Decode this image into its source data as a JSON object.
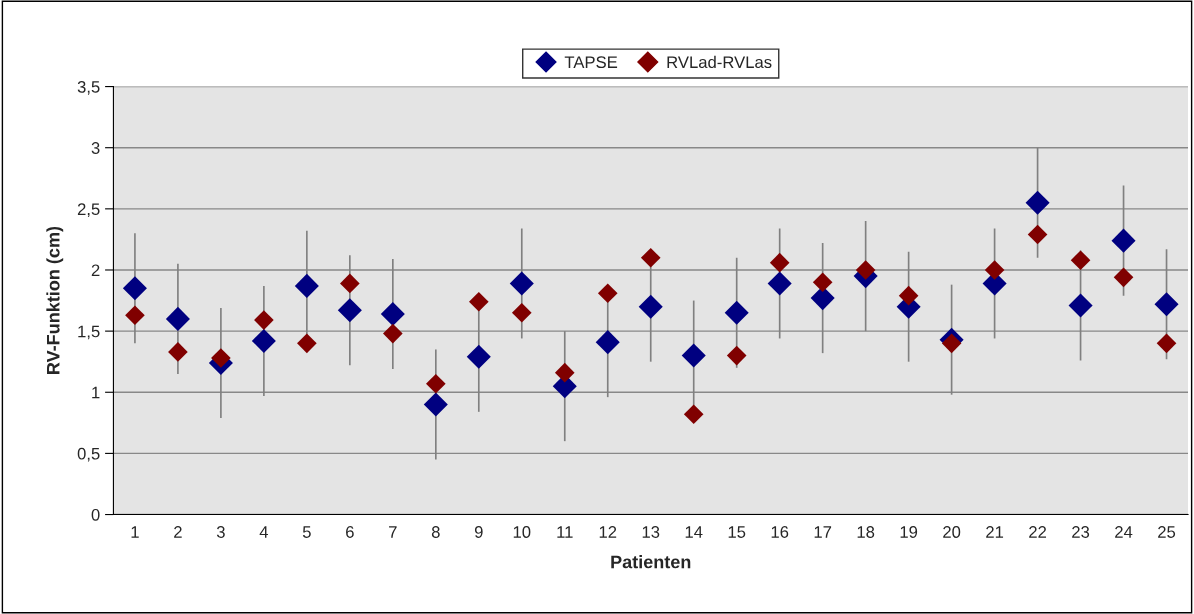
{
  "chart_data": {
    "type": "scatter",
    "xlabel": "Patienten",
    "ylabel": "RV-Funktion (cm)",
    "categories": [
      "1",
      "2",
      "3",
      "4",
      "5",
      "6",
      "7",
      "8",
      "9",
      "10",
      "11",
      "12",
      "13",
      "14",
      "15",
      "16",
      "17",
      "18",
      "19",
      "20",
      "21",
      "22",
      "23",
      "24",
      "25"
    ],
    "series": [
      {
        "name": "TAPSE",
        "color": "#000080",
        "values": [
          1.85,
          1.6,
          1.24,
          1.42,
          1.87,
          1.67,
          1.64,
          0.9,
          1.29,
          1.89,
          1.05,
          1.41,
          1.7,
          1.3,
          1.65,
          1.89,
          1.77,
          1.95,
          1.7,
          1.43,
          1.89,
          2.55,
          1.71,
          2.24,
          1.72
        ],
        "errors": [
          0.45,
          0.45,
          0.45,
          0.45,
          0.45,
          0.45,
          0.45,
          0.45,
          0.45,
          0.45,
          0.45,
          0.45,
          0.45,
          0.45,
          0.45,
          0.45,
          0.45,
          0.45,
          0.45,
          0.45,
          0.45,
          0.45,
          0.45,
          0.45,
          0.45
        ]
      },
      {
        "name": "RVLad-RVLas",
        "color": "#800000",
        "values": [
          1.63,
          1.33,
          1.28,
          1.59,
          1.4,
          1.89,
          1.48,
          1.07,
          1.74,
          1.65,
          1.16,
          1.81,
          2.1,
          0.82,
          1.3,
          2.06,
          1.9,
          2.0,
          1.79,
          1.4,
          2.0,
          2.29,
          2.08,
          1.94,
          1.4
        ]
      }
    ],
    "ylim": [
      0,
      3.5
    ],
    "yticks": [
      0,
      {
        "value": 0.5,
        "label": "0,5"
      },
      1,
      {
        "value": 1.5,
        "label": "1,5"
      },
      2,
      {
        "value": 2.5,
        "label": "2,5"
      },
      3,
      {
        "value": 3.5,
        "label": "3,5"
      }
    ],
    "grid": "y",
    "legend": "top",
    "marker": "diamond"
  }
}
